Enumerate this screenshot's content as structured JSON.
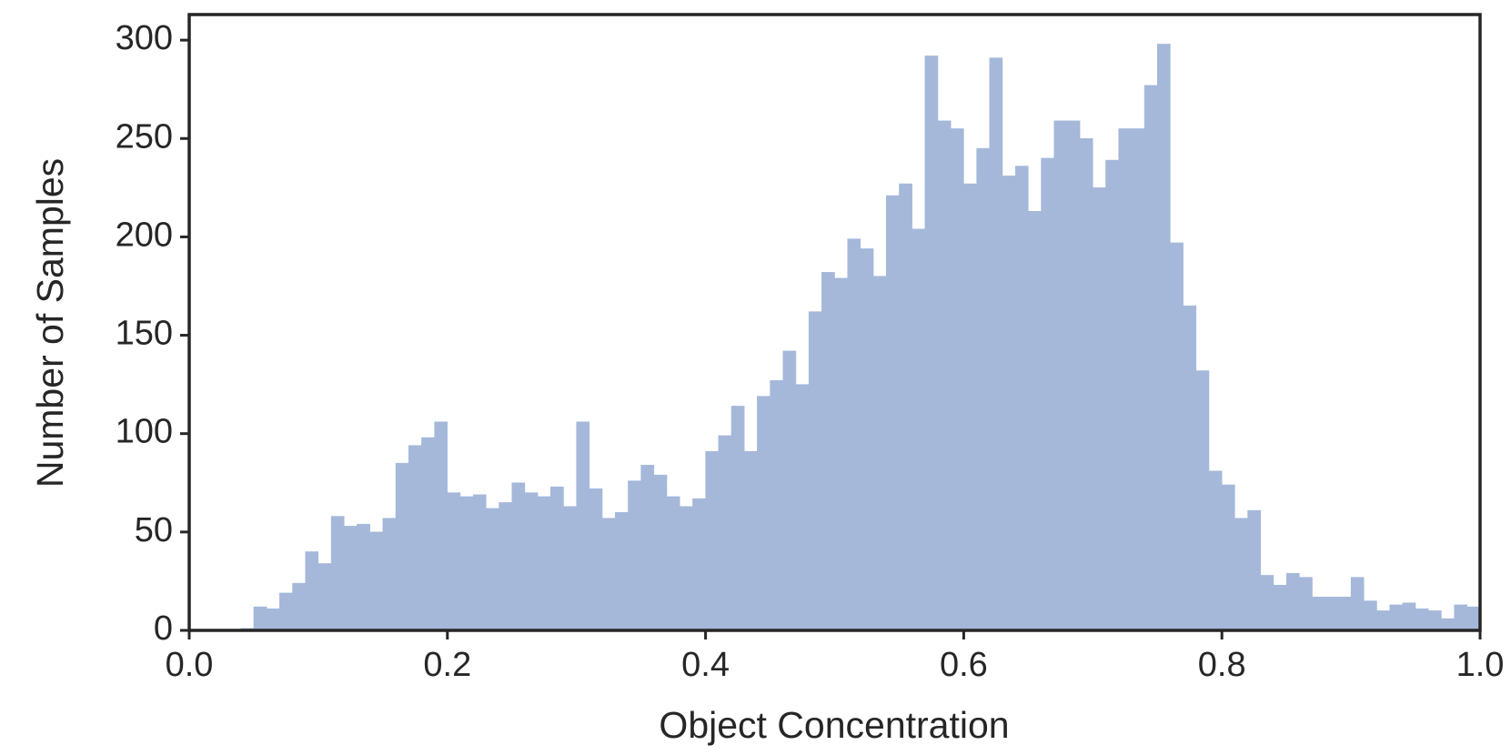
{
  "chart_data": {
    "type": "histogram",
    "xlabel": "Object Concentration",
    "ylabel": "Number of Samples",
    "color": "#a5b8d9",
    "bins": [
      0.04,
      0.05,
      0.06,
      0.07,
      0.08,
      0.09,
      0.1,
      0.11,
      0.12,
      0.13,
      0.14,
      0.15,
      0.16,
      0.17,
      0.18,
      0.19,
      0.2,
      0.21,
      0.22,
      0.23,
      0.24,
      0.25,
      0.26,
      0.27,
      0.28,
      0.29,
      0.3,
      0.31,
      0.32,
      0.33,
      0.34,
      0.35,
      0.36,
      0.37,
      0.38,
      0.39,
      0.4,
      0.41,
      0.42,
      0.43,
      0.44,
      0.45,
      0.46,
      0.47,
      0.48,
      0.49,
      0.5,
      0.51,
      0.52,
      0.53,
      0.54,
      0.55,
      0.56,
      0.57,
      0.58,
      0.59,
      0.6,
      0.61,
      0.62,
      0.63,
      0.64,
      0.65,
      0.66,
      0.67,
      0.68,
      0.69,
      0.7,
      0.71,
      0.72,
      0.73,
      0.74,
      0.75,
      0.76,
      0.77,
      0.78,
      0.79,
      0.8,
      0.81,
      0.82,
      0.83,
      0.84,
      0.85,
      0.86,
      0.87,
      0.88,
      0.89,
      0.9,
      0.91,
      0.92,
      0.93,
      0.94,
      0.95,
      0.96,
      0.97,
      0.98,
      0.99,
      1.0
    ],
    "values": [
      1,
      12,
      11,
      19,
      24,
      40,
      34,
      58,
      53,
      54,
      50,
      57,
      85,
      94,
      98,
      106,
      70,
      68,
      69,
      62,
      65,
      75,
      70,
      68,
      73,
      63,
      106,
      72,
      57,
      60,
      76,
      84,
      79,
      68,
      63,
      67,
      91,
      99,
      114,
      91,
      119,
      127,
      142,
      125,
      162,
      182,
      179,
      199,
      194,
      180,
      221,
      227,
      204,
      292,
      259,
      255,
      227,
      245,
      291,
      231,
      236,
      213,
      240,
      259,
      259,
      250,
      225,
      239,
      255,
      255,
      277,
      298,
      197,
      165,
      132,
      81,
      74,
      57,
      61,
      28,
      23,
      29,
      27,
      17,
      17,
      17,
      27,
      15,
      10,
      13,
      14,
      11,
      10,
      6,
      13,
      12
    ],
    "xlim": [
      0,
      1
    ],
    "ylim": [
      0,
      313
    ],
    "xticks": [
      {
        "value": 0,
        "label": "0.0"
      },
      0.2,
      0.4,
      0.6,
      0.8,
      {
        "value": 1,
        "label": "1.0"
      }
    ],
    "yticks": [
      0,
      50,
      100,
      150,
      200,
      250,
      300
    ]
  }
}
